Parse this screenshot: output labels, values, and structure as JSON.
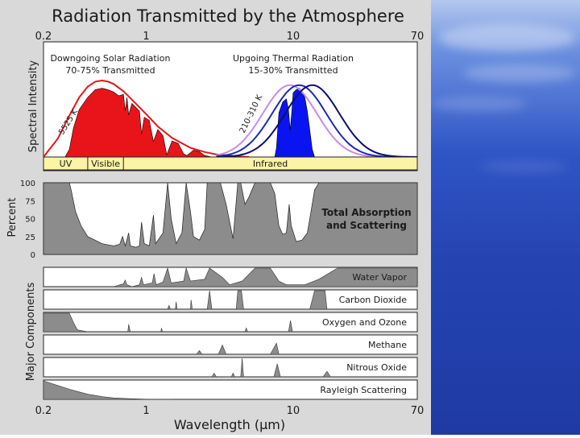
{
  "chart_data": {
    "type": "area",
    "title": "Radiation Transmitted by the Atmosphere",
    "xlabel": "Wavelength (μm)",
    "x_scale": "log",
    "xlim": [
      0.2,
      70
    ],
    "x_ticks": [
      "0.2",
      "1",
      "10",
      "70"
    ],
    "top_panel": {
      "ylabel": "Spectral Intensity",
      "solar": {
        "label_line1": "Downgoing Solar Radiation",
        "label_line2": "70-75% Transmitted",
        "temp_label": "5525 K",
        "color": "#e8141a",
        "curve": [
          [
            0.2,
            0.0
          ],
          [
            0.25,
            0.24
          ],
          [
            0.3,
            0.54
          ],
          [
            0.35,
            0.78
          ],
          [
            0.4,
            0.92
          ],
          [
            0.45,
            0.985
          ],
          [
            0.5,
            1.0
          ],
          [
            0.55,
            0.985
          ],
          [
            0.6,
            0.955
          ],
          [
            0.7,
            0.86
          ],
          [
            0.8,
            0.75
          ],
          [
            1.0,
            0.56
          ],
          [
            1.2,
            0.4
          ],
          [
            1.5,
            0.25
          ],
          [
            2.0,
            0.12
          ],
          [
            2.5,
            0.065
          ],
          [
            3.0,
            0.035
          ],
          [
            4.0,
            0.012
          ],
          [
            5.0,
            0.0
          ]
        ],
        "transmitted": [
          [
            0.28,
            0
          ],
          [
            0.3,
            0.1
          ],
          [
            0.32,
            0.38
          ],
          [
            0.35,
            0.62
          ],
          [
            0.4,
            0.78
          ],
          [
            0.45,
            0.88
          ],
          [
            0.5,
            0.9
          ],
          [
            0.55,
            0.88
          ],
          [
            0.6,
            0.85
          ],
          [
            0.65,
            0.8
          ],
          [
            0.7,
            0.82
          ],
          [
            0.72,
            0.6
          ],
          [
            0.74,
            0.78
          ],
          [
            0.76,
            0.55
          ],
          [
            0.8,
            0.7
          ],
          [
            0.9,
            0.6
          ],
          [
            0.93,
            0.3
          ],
          [
            0.97,
            0.52
          ],
          [
            1.05,
            0.48
          ],
          [
            1.12,
            0.2
          ],
          [
            1.2,
            0.36
          ],
          [
            1.3,
            0.28
          ],
          [
            1.38,
            0.03
          ],
          [
            1.5,
            0.21
          ],
          [
            1.65,
            0.18
          ],
          [
            1.8,
            0.04
          ],
          [
            1.9,
            0.02
          ],
          [
            2.1,
            0.09
          ],
          [
            2.3,
            0.07
          ],
          [
            2.5,
            0.02
          ],
          [
            2.8,
            0.0
          ]
        ]
      },
      "thermal": {
        "label_line1": "Upgoing Thermal Radiation",
        "label_line2": "15-30% Transmitted",
        "temp_label": "210-310 K",
        "fill_color": "#0a14f0",
        "curves": [
          {
            "peak_um": 9.5,
            "color": "#c78be8"
          },
          {
            "peak_um": 11.0,
            "color": "#1a2ab5"
          },
          {
            "peak_um": 13.5,
            "color": "#0b0f6e"
          }
        ],
        "transmitted": [
          [
            7.5,
            0
          ],
          [
            7.7,
            0.12
          ],
          [
            8.0,
            0.58
          ],
          [
            8.5,
            0.72
          ],
          [
            9.0,
            0.76
          ],
          [
            9.3,
            0.62
          ],
          [
            9.55,
            0.35
          ],
          [
            9.8,
            0.6
          ],
          [
            10.0,
            0.84
          ],
          [
            10.5,
            0.88
          ],
          [
            11.0,
            0.9
          ],
          [
            11.5,
            0.86
          ],
          [
            12.0,
            0.78
          ],
          [
            12.5,
            0.6
          ],
          [
            13.0,
            0.35
          ],
          [
            13.5,
            0.1
          ],
          [
            14.0,
            0.0
          ]
        ]
      },
      "bands": [
        {
          "label": "UV",
          "from": 0.2,
          "to": 0.4
        },
        {
          "label": "Visible",
          "from": 0.4,
          "to": 0.7
        },
        {
          "label": "Infrared",
          "from": 0.7,
          "to": 70
        }
      ]
    },
    "absorption_panel": {
      "ylabel": "Percent",
      "yticks": [
        "100",
        "75",
        "50",
        "25",
        "0"
      ],
      "label_line1": "Total Absorption",
      "label_line2": "and Scattering",
      "fill_color": "#8c8c8c",
      "values": [
        [
          0.2,
          100
        ],
        [
          0.3,
          100
        ],
        [
          0.31,
          88
        ],
        [
          0.33,
          60
        ],
        [
          0.36,
          40
        ],
        [
          0.4,
          25
        ],
        [
          0.5,
          15
        ],
        [
          0.6,
          12
        ],
        [
          0.66,
          14
        ],
        [
          0.69,
          25
        ],
        [
          0.72,
          12
        ],
        [
          0.76,
          30
        ],
        [
          0.78,
          12
        ],
        [
          0.85,
          10
        ],
        [
          0.9,
          12
        ],
        [
          0.93,
          45
        ],
        [
          0.97,
          15
        ],
        [
          1.05,
          12
        ],
        [
          1.12,
          55
        ],
        [
          1.16,
          15
        ],
        [
          1.3,
          30
        ],
        [
          1.4,
          100
        ],
        [
          1.48,
          50
        ],
        [
          1.6,
          15
        ],
        [
          1.75,
          30
        ],
        [
          1.87,
          100
        ],
        [
          2.0,
          60
        ],
        [
          2.1,
          25
        ],
        [
          2.3,
          20
        ],
        [
          2.5,
          35
        ],
        [
          2.6,
          100
        ],
        [
          3.2,
          100
        ],
        [
          3.5,
          70
        ],
        [
          3.9,
          22
        ],
        [
          4.2,
          100
        ],
        [
          4.4,
          100
        ],
        [
          4.7,
          70
        ],
        [
          5.0,
          80
        ],
        [
          5.5,
          100
        ],
        [
          7.0,
          100
        ],
        [
          7.5,
          85
        ],
        [
          8.0,
          40
        ],
        [
          8.5,
          28
        ],
        [
          9.0,
          30
        ],
        [
          9.4,
          70
        ],
        [
          9.7,
          40
        ],
        [
          10.5,
          18
        ],
        [
          11.5,
          20
        ],
        [
          12.5,
          30
        ],
        [
          13.0,
          50
        ],
        [
          14.0,
          90
        ],
        [
          15.0,
          100
        ],
        [
          70,
          100
        ]
      ]
    },
    "components_panel": {
      "ylabel": "Major Components",
      "fill_color": "#8c8c8c",
      "components": [
        {
          "name": "Water Vapor",
          "values": [
            [
              0.2,
              0
            ],
            [
              0.6,
              0
            ],
            [
              0.7,
              0.15
            ],
            [
              0.72,
              0.35
            ],
            [
              0.74,
              0.1
            ],
            [
              0.8,
              0
            ],
            [
              0.9,
              0.1
            ],
            [
              0.93,
              0.5
            ],
            [
              0.96,
              0.1
            ],
            [
              1.1,
              0.2
            ],
            [
              1.13,
              0.7
            ],
            [
              1.17,
              0.1
            ],
            [
              1.3,
              0.25
            ],
            [
              1.4,
              1
            ],
            [
              1.48,
              0.2
            ],
            [
              1.8,
              0.3
            ],
            [
              1.87,
              1
            ],
            [
              2.0,
              0.3
            ],
            [
              2.5,
              0.4
            ],
            [
              2.7,
              1
            ],
            [
              3.3,
              0.5
            ],
            [
              3.7,
              0.1
            ],
            [
              4.5,
              0.3
            ],
            [
              5.5,
              1
            ],
            [
              7.0,
              1
            ],
            [
              8.0,
              0.3
            ],
            [
              9.0,
              0.1
            ],
            [
              12,
              0.1
            ],
            [
              15,
              0.4
            ],
            [
              20,
              1
            ],
            [
              70,
              1
            ]
          ]
        },
        {
          "name": "Carbon Dioxide",
          "values": [
            [
              0.2,
              0
            ],
            [
              1.4,
              0
            ],
            [
              1.43,
              0.2
            ],
            [
              1.46,
              0
            ],
            [
              1.58,
              0
            ],
            [
              1.6,
              0.4
            ],
            [
              1.62,
              0
            ],
            [
              2.0,
              0
            ],
            [
              2.02,
              0.5
            ],
            [
              2.06,
              0
            ],
            [
              2.6,
              0
            ],
            [
              2.7,
              1
            ],
            [
              2.8,
              0
            ],
            [
              4.1,
              0
            ],
            [
              4.2,
              1
            ],
            [
              4.45,
              1
            ],
            [
              4.6,
              0
            ],
            [
              13,
              0
            ],
            [
              14,
              1
            ],
            [
              16.5,
              1
            ],
            [
              17,
              0
            ],
            [
              70,
              0
            ]
          ]
        },
        {
          "name": "Oxygen and Ozone",
          "values": [
            [
              0.2,
              1
            ],
            [
              0.3,
              1
            ],
            [
              0.32,
              0.5
            ],
            [
              0.34,
              0.1
            ],
            [
              0.4,
              0
            ],
            [
              0.75,
              0
            ],
            [
              0.76,
              0.4
            ],
            [
              0.78,
              0
            ],
            [
              1.26,
              0
            ],
            [
              1.27,
              0.2
            ],
            [
              1.29,
              0
            ],
            [
              4.7,
              0
            ],
            [
              4.8,
              0.2
            ],
            [
              4.9,
              0
            ],
            [
              9.3,
              0
            ],
            [
              9.6,
              0.6
            ],
            [
              9.9,
              0
            ],
            [
              70,
              0
            ]
          ]
        },
        {
          "name": "Methane",
          "values": [
            [
              0.2,
              0
            ],
            [
              2.2,
              0
            ],
            [
              2.3,
              0.2
            ],
            [
              2.4,
              0
            ],
            [
              3.1,
              0
            ],
            [
              3.3,
              0.5
            ],
            [
              3.5,
              0
            ],
            [
              7.0,
              0
            ],
            [
              7.7,
              0.6
            ],
            [
              8.0,
              0
            ],
            [
              70,
              0
            ]
          ]
        },
        {
          "name": "Nitrous Oxide",
          "values": [
            [
              0.2,
              0
            ],
            [
              2.8,
              0
            ],
            [
              2.9,
              0.2
            ],
            [
              3.0,
              0
            ],
            [
              3.8,
              0
            ],
            [
              3.9,
              0.2
            ],
            [
              4.0,
              0
            ],
            [
              4.4,
              0
            ],
            [
              4.5,
              1
            ],
            [
              4.6,
              0
            ],
            [
              7.4,
              0
            ],
            [
              7.8,
              0.7
            ],
            [
              8.2,
              0
            ],
            [
              16,
              0
            ],
            [
              17,
              0.3
            ],
            [
              18,
              0
            ],
            [
              70,
              0
            ]
          ]
        },
        {
          "name": "Rayleigh Scattering",
          "values": [
            [
              0.2,
              1
            ],
            [
              0.25,
              0.75
            ],
            [
              0.3,
              0.55
            ],
            [
              0.35,
              0.4
            ],
            [
              0.4,
              0.28
            ],
            [
              0.5,
              0.15
            ],
            [
              0.6,
              0.08
            ],
            [
              0.8,
              0.03
            ],
            [
              1.0,
              0.01
            ],
            [
              1.5,
              0
            ]
          ]
        }
      ]
    }
  }
}
